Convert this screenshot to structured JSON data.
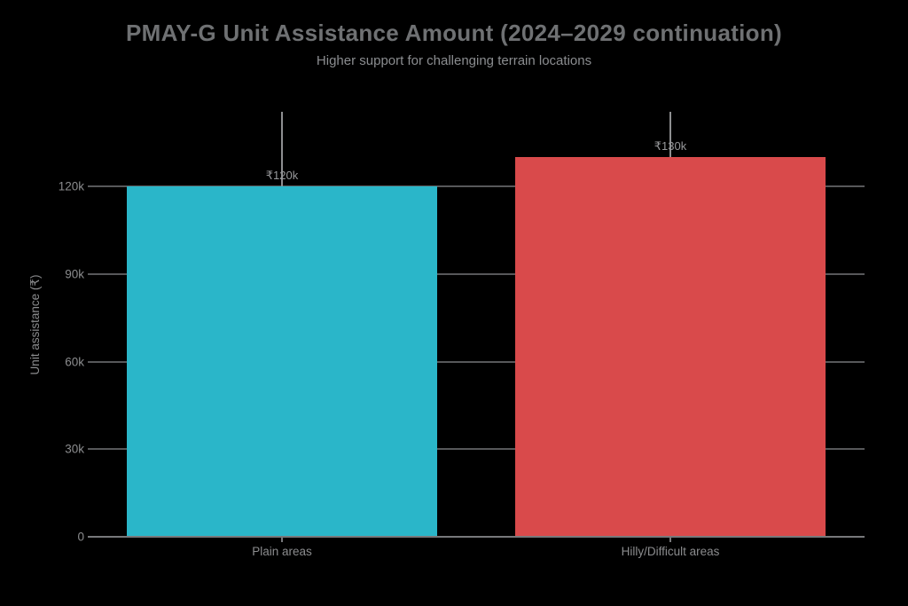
{
  "chart_data": {
    "type": "bar",
    "title": "PMAY-G Unit Assistance Amount (2024–2029 continuation)",
    "subtitle": "Higher support for challenging terrain locations",
    "categories": [
      "Plain areas",
      "Hilly/Difficult areas"
    ],
    "values": [
      120000,
      130000
    ],
    "value_labels": [
      "₹120k",
      "₹130k"
    ],
    "bar_colors": [
      "#2ab6c9",
      "#d94a4b"
    ],
    "xlabel": "",
    "ylabel": "Unit assistance (₹)",
    "ylim": [
      0,
      145500
    ],
    "yticks": [
      0,
      30000,
      60000,
      90000,
      120000
    ],
    "ytick_labels": [
      "0",
      "30k",
      "60k",
      "90k",
      "120k"
    ],
    "grid": "horizontal",
    "legend": "none",
    "background": "#000000",
    "annotation_line_color": "#8e8f91"
  }
}
